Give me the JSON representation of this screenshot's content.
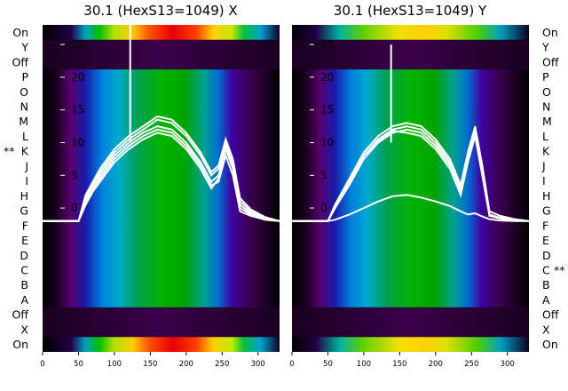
{
  "chart_data": [
    {
      "type": "heatmap",
      "title": "30.1 (HexS13=1049) X",
      "x_ticks": [
        0,
        50,
        100,
        150,
        200,
        250,
        300
      ],
      "xlim": [
        0,
        330
      ],
      "y_ticks": [
        0,
        5,
        10,
        15,
        20,
        25
      ],
      "ylim": [
        -22,
        28
      ],
      "row_labels_top_to_bottom": [
        "On",
        "Y",
        "Off",
        "P",
        "O",
        "N",
        "M",
        "L",
        "K",
        "J",
        "I",
        "H",
        "G",
        "F",
        "E",
        "D",
        "C",
        "B",
        "A",
        "Off",
        "X",
        "On"
      ],
      "marked_row": {
        "label": "K",
        "mark": "**"
      },
      "colormap": "nipy_spectral",
      "overlay_lines": {
        "color": "#ffffff",
        "x": [
          0,
          50,
          60,
          80,
          100,
          120,
          140,
          160,
          180,
          200,
          220,
          235,
          245,
          255,
          265,
          275,
          290,
          310,
          330
        ],
        "series": [
          {
            "y": [
              -2,
              -2,
              1,
              5,
              8,
              10,
              11.5,
              12.5,
              12,
              10,
              7,
              4,
              5,
              9,
              6,
              0,
              -1,
              -1.8,
              -2
            ]
          },
          {
            "y": [
              -2,
              -2,
              1.5,
              5.5,
              8.5,
              10.5,
              12,
              13.5,
              13,
              11,
              8,
              5,
              6,
              10,
              7,
              1,
              -0.5,
              -1.5,
              -2
            ]
          },
          {
            "y": [
              -2,
              -2,
              0.5,
              4.5,
              7.5,
              9.5,
              11,
              12,
              11.5,
              9.5,
              6.5,
              3.5,
              4,
              8,
              5,
              -0.5,
              -1.2,
              -1.8,
              -2
            ]
          },
          {
            "y": [
              -2,
              -2,
              2,
              6,
              9,
              11,
              12.5,
              14,
              13.5,
              11.5,
              8.5,
              5.5,
              6.5,
              10.5,
              7.5,
              1.5,
              -0.2,
              -1.4,
              -2
            ]
          },
          {
            "y": [
              -2,
              -2,
              1,
              4,
              7,
              9,
              10.5,
              11.5,
              11,
              9,
              6,
              3,
              4.5,
              9.5,
              6.5,
              0.5,
              -0.8,
              -1.7,
              -2
            ]
          }
        ],
        "spike": {
          "x": 122,
          "y_top": 28
        }
      }
    },
    {
      "type": "heatmap",
      "title": "30.1 (HexS13=1049) Y",
      "x_ticks": [
        0,
        50,
        100,
        150,
        200,
        250,
        300
      ],
      "xlim": [
        0,
        330
      ],
      "y_ticks": [
        0,
        5,
        10,
        15,
        20,
        25
      ],
      "ylim": [
        -22,
        28
      ],
      "row_labels_top_to_bottom": [
        "On",
        "Y",
        "Off",
        "P",
        "O",
        "N",
        "M",
        "L",
        "K",
        "J",
        "I",
        "H",
        "G",
        "F",
        "E",
        "D",
        "C",
        "B",
        "A",
        "Off",
        "X",
        "On"
      ],
      "marked_row": {
        "label": "C",
        "mark": "**"
      },
      "colormap": "nipy_spectral",
      "overlay_lines": {
        "color": "#ffffff",
        "x": [
          0,
          50,
          60,
          80,
          100,
          120,
          140,
          160,
          180,
          200,
          220,
          235,
          245,
          255,
          265,
          275,
          290,
          310,
          330
        ],
        "series": [
          {
            "y": [
              -2,
              -2,
              0,
              4,
              8,
              10.5,
              12,
              12.5,
              12,
              10,
              7,
              3,
              8,
              12,
              6,
              -1,
              -1.5,
              -1.8,
              -2
            ]
          },
          {
            "y": [
              -2,
              -2,
              0.5,
              4.5,
              8.5,
              11,
              12.5,
              13,
              12.5,
              10.5,
              7.5,
              3.5,
              8.5,
              12.5,
              6.5,
              -0.5,
              -1.2,
              -1.7,
              -2
            ]
          },
          {
            "y": [
              -2,
              -2,
              0,
              3.5,
              7.5,
              10,
              11.5,
              12,
              11.5,
              9.5,
              6.5,
              2.5,
              7.5,
              11.5,
              5.5,
              -1,
              -1.5,
              -1.9,
              -2
            ]
          },
          {
            "y": [
              -2,
              -2,
              0.2,
              4,
              8,
              10.2,
              11.8,
              11.5,
              11,
              9,
              6,
              2,
              7,
              11,
              5,
              -1.2,
              -1.6,
              -1.9,
              -2
            ]
          },
          {
            "y": [
              -2,
              -2,
              -1.8,
              -1,
              0,
              1,
              1.8,
              2,
              1.6,
              1,
              0.3,
              -0.5,
              -1,
              -0.8,
              -1.3,
              -1.7,
              -1.9,
              -2,
              -2
            ]
          }
        ],
        "spike": {
          "x": 138,
          "y_top": 25
        }
      }
    }
  ]
}
